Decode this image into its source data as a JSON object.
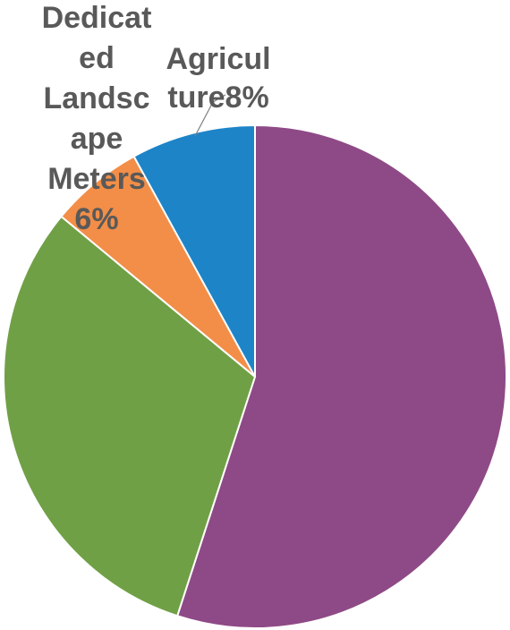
{
  "chart_data": {
    "type": "pie",
    "slices": [
      {
        "label": "",
        "value": 55,
        "color": "#8E4A86"
      },
      {
        "label": "",
        "value": 31,
        "color": "#70A046"
      },
      {
        "label": "Dedicated Landscape Meters",
        "value": 6,
        "color": "#F28E48"
      },
      {
        "label": "Agriculture",
        "value": 8,
        "color": "#1E84C8"
      }
    ],
    "data_labels": [
      {
        "slice": 2,
        "lines": [
          "Dedicat",
          "ed",
          "Landsc",
          "ape",
          "Meters",
          "6%"
        ]
      },
      {
        "slice": 3,
        "lines": [
          "Agricul",
          "ture8%"
        ]
      }
    ]
  }
}
